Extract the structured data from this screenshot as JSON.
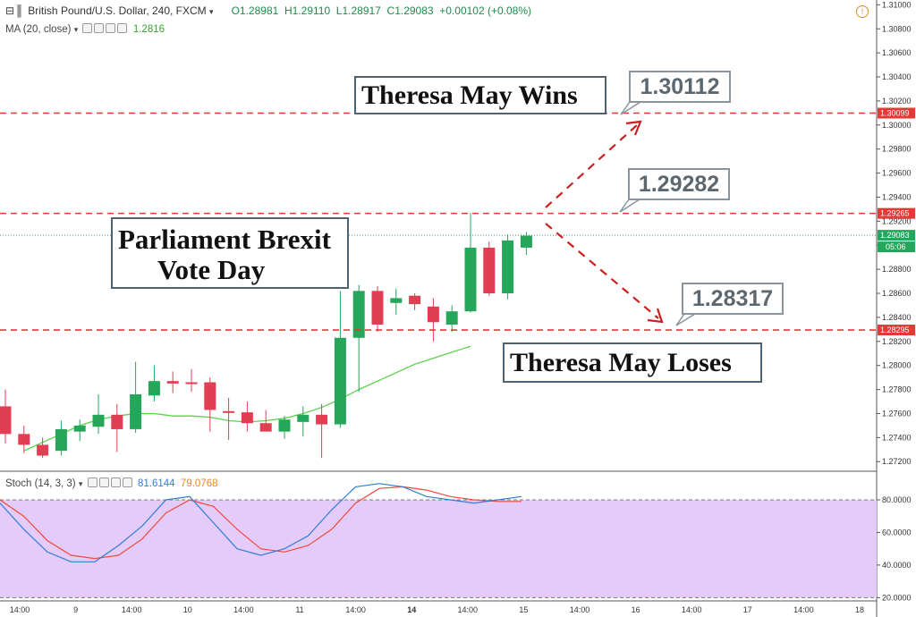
{
  "header": {
    "symbol": "British Pound/U.S. Dollar, 240, FXCM",
    "open": "O1.28981",
    "high": "H1.29110",
    "low": "L1.28917",
    "close": "C1.29083",
    "change": "+0.00102 (+0.08%)"
  },
  "indicators": {
    "ma_label": "MA (20, close)",
    "ma_value": "1.2816",
    "stoch_label": "Stoch (14, 3, 3)",
    "stoch_k": "81.6144",
    "stoch_d": "79.0768"
  },
  "annotations": {
    "wins": "Theresa May Wins",
    "vote_line1": "Parliament Brexit",
    "vote_line2": "Vote Day",
    "loses": "Theresa May Loses",
    "callout_top": "1.30112",
    "callout_mid": "1.29282",
    "callout_low": "1.28317"
  },
  "price_axis": {
    "ticks": [
      "1.31000",
      "1.30800",
      "1.30600",
      "1.30400",
      "1.30200",
      "1.30000",
      "1.29800",
      "1.29600",
      "1.29400",
      "1.29200",
      "1.29000",
      "1.28800",
      "1.28600",
      "1.28400",
      "1.28200",
      "1.28000",
      "1.27800",
      "1.27600",
      "1.27400",
      "1.27200"
    ],
    "level_top": "1.30099",
    "level_mid": "1.29265",
    "level_low": "1.28295",
    "current_price": "1.29083",
    "countdown": "05:06"
  },
  "stoch_axis": {
    "ticks": [
      "80.0000",
      "60.0000",
      "40.0000",
      "20.0000"
    ]
  },
  "time_axis": {
    "labels": [
      "14:00",
      "9",
      "14:00",
      "10",
      "14:00",
      "11",
      "14:00",
      "14",
      "14:00",
      "15",
      "14:00",
      "16",
      "14:00",
      "17",
      "14:00",
      "18"
    ]
  },
  "colors": {
    "up": "#26a65b",
    "down": "#e03e52",
    "ma": "#5bd24a",
    "stoch_k": "#2d7fd6",
    "stoch_d": "#ef4a3b",
    "stoch_band": "#e4cbfa",
    "level": "#e53935"
  },
  "chart_data": {
    "type": "candlestick",
    "candles": [
      {
        "o": 1.2766,
        "h": 1.278,
        "l": 1.2735,
        "c": 1.2743
      },
      {
        "o": 1.2743,
        "h": 1.275,
        "l": 1.2727,
        "c": 1.2734
      },
      {
        "o": 1.2734,
        "h": 1.274,
        "l": 1.2723,
        "c": 1.2725
      },
      {
        "o": 1.2729,
        "h": 1.2754,
        "l": 1.2725,
        "c": 1.2747
      },
      {
        "o": 1.2745,
        "h": 1.2755,
        "l": 1.2737,
        "c": 1.275
      },
      {
        "o": 1.2749,
        "h": 1.2776,
        "l": 1.2743,
        "c": 1.2759
      },
      {
        "o": 1.2759,
        "h": 1.2768,
        "l": 1.2728,
        "c": 1.2747
      },
      {
        "o": 1.2747,
        "h": 1.2803,
        "l": 1.2744,
        "c": 1.2776
      },
      {
        "o": 1.2775,
        "h": 1.28,
        "l": 1.277,
        "c": 1.2787
      },
      {
        "o": 1.2787,
        "h": 1.2795,
        "l": 1.2777,
        "c": 1.2785
      },
      {
        "o": 1.2786,
        "h": 1.2797,
        "l": 1.2778,
        "c": 1.2785
      },
      {
        "o": 1.2786,
        "h": 1.279,
        "l": 1.2745,
        "c": 1.2763
      },
      {
        "o": 1.2762,
        "h": 1.2773,
        "l": 1.2738,
        "c": 1.2761
      },
      {
        "o": 1.2761,
        "h": 1.277,
        "l": 1.2745,
        "c": 1.2752
      },
      {
        "o": 1.2752,
        "h": 1.2763,
        "l": 1.2748,
        "c": 1.2745
      },
      {
        "o": 1.2745,
        "h": 1.2758,
        "l": 1.2739,
        "c": 1.2755
      },
      {
        "o": 1.2753,
        "h": 1.2766,
        "l": 1.2741,
        "c": 1.2759
      },
      {
        "o": 1.2759,
        "h": 1.2768,
        "l": 1.2723,
        "c": 1.2751
      },
      {
        "o": 1.2751,
        "h": 1.2862,
        "l": 1.2748,
        "c": 1.2823
      },
      {
        "o": 1.2823,
        "h": 1.2867,
        "l": 1.2778,
        "c": 1.2862
      },
      {
        "o": 1.2862,
        "h": 1.2866,
        "l": 1.2828,
        "c": 1.2834
      },
      {
        "o": 1.2852,
        "h": 1.2864,
        "l": 1.2842,
        "c": 1.2856
      },
      {
        "o": 1.2858,
        "h": 1.286,
        "l": 1.2846,
        "c": 1.2851
      },
      {
        "o": 1.2849,
        "h": 1.2856,
        "l": 1.282,
        "c": 1.2836
      },
      {
        "o": 1.2834,
        "h": 1.285,
        "l": 1.2828,
        "c": 1.2845
      },
      {
        "o": 1.2845,
        "h": 1.2927,
        "l": 1.2844,
        "c": 1.2898
      },
      {
        "o": 1.2898,
        "h": 1.2903,
        "l": 1.2858,
        "c": 1.286
      },
      {
        "o": 1.286,
        "h": 1.2909,
        "l": 1.2855,
        "c": 1.2904
      },
      {
        "o": 1.2898,
        "h": 1.2911,
        "l": 1.2892,
        "c": 1.2908
      }
    ],
    "ma20": [
      1.2729,
      1.2736,
      1.2743,
      1.275,
      1.2755,
      1.2758,
      1.276,
      1.276,
      1.2758,
      1.2758,
      1.2757,
      1.2754,
      1.2753,
      1.2754,
      1.2756,
      1.276,
      1.2765,
      1.2772,
      1.278,
      1.2787,
      1.2794,
      1.2801,
      1.2806,
      1.2811,
      1.2816
    ],
    "stoch": {
      "k": [
        78,
        62,
        48,
        42,
        42,
        52,
        64,
        80,
        82,
        66,
        50,
        46,
        50,
        58,
        74,
        88,
        90,
        88,
        82,
        80,
        78,
        80,
        82
      ],
      "d": [
        80,
        70,
        55,
        46,
        44,
        46,
        56,
        72,
        80,
        76,
        62,
        50,
        48,
        52,
        62,
        78,
        87,
        88,
        86,
        82,
        80,
        79,
        79
      ],
      "levels": [
        80,
        20
      ]
    },
    "levels": [
      1.30099,
      1.29265,
      1.28295
    ],
    "y_range": [
      1.2712,
      1.3104
    ],
    "stoch_range": [
      18,
      97
    ]
  }
}
